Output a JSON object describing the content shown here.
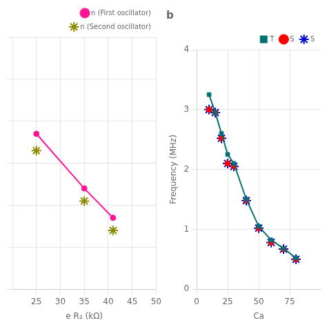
{
  "chart_data": [
    {
      "type": "line",
      "x_label": "e R₂ (kΩ)",
      "x": [
        25,
        35,
        41
      ],
      "series": [
        {
          "name": "n (First oscillator)",
          "color": "#FF1493",
          "type": "line",
          "marker": "circle",
          "values": [
            0.97,
            0.84,
            0.77
          ]
        },
        {
          "name": "n (Second oscillator)",
          "color": "#8B8B00",
          "type": "scatter",
          "marker": "star",
          "values": [
            0.93,
            0.81,
            0.74
          ]
        }
      ],
      "xlim": [
        20,
        50
      ],
      "xticks": [
        25,
        30,
        35,
        40,
        45,
        50
      ],
      "ylim": [
        0.6,
        1.2
      ],
      "yticks": [
        0.6,
        0.7,
        0.8,
        0.9,
        1.0,
        1.1,
        1.2
      ],
      "tick_labels": "x",
      "grid": true,
      "legend": "upper right"
    },
    {
      "type": "line",
      "annotations": [
        "b"
      ],
      "x_label": "Ca",
      "y_label": "Frequency (MHz)",
      "x": [
        10,
        15,
        20,
        25,
        30,
        40,
        50,
        60,
        70,
        80
      ],
      "series": [
        {
          "name": "T",
          "color": "#007070",
          "type": "line",
          "marker": "square",
          "values": [
            3.25,
            2.95,
            2.6,
            2.25,
            2.1,
            1.5,
            1.05,
            0.82,
            0.68,
            0.52
          ]
        },
        {
          "name": "S",
          "color": "#FF0000",
          "type": "scatter",
          "marker": "circle",
          "values": [
            3.0,
            2.95,
            2.52,
            2.1,
            2.05,
            1.48,
            1.02,
            0.78,
            0.67,
            0.5
          ]
        },
        {
          "name": "S",
          "color": "#0000CC",
          "type": "scatter",
          "marker": "star",
          "values": [
            3.0,
            2.95,
            2.52,
            2.1,
            2.05,
            1.48,
            1.02,
            0.78,
            0.67,
            0.5
          ]
        }
      ],
      "xlim": [
        0,
        100
      ],
      "xticks": [
        0,
        25,
        50,
        75
      ],
      "ylim": [
        0,
        4
      ],
      "yticks": [
        0,
        1,
        2,
        3,
        4
      ],
      "grid": true,
      "legend": "upper right"
    }
  ]
}
